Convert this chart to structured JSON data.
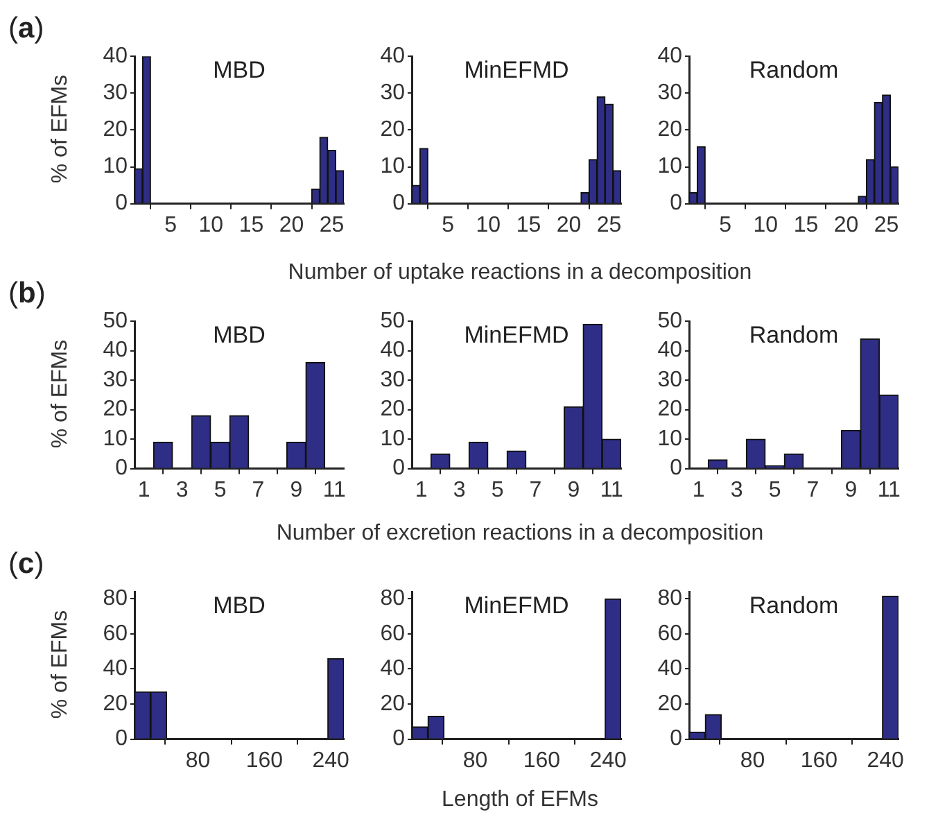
{
  "chart_data": [
    {
      "type": "histogram",
      "title": "MBD",
      "ylabel": "% of EFMs",
      "annotations": [
        "(a)"
      ],
      "color": "#2e2e87",
      "bins": [
        0.5,
        1.5,
        2.5,
        3.5,
        4.5,
        5.5,
        6.5,
        7.5,
        8.5,
        9.5,
        10.5,
        11.5,
        12.5,
        13.5,
        14.5,
        15.5,
        16.5,
        17.5,
        18.5,
        19.5,
        20.5,
        21.5,
        22.5,
        23.5,
        24.5,
        25.5,
        26.5
      ],
      "values": [
        9.5,
        40,
        0,
        0,
        0,
        0,
        0,
        0,
        0,
        0,
        0,
        0,
        0,
        0,
        0,
        0,
        0,
        0,
        0,
        0,
        0,
        0,
        4,
        18,
        14.5,
        9
      ],
      "xlim": [
        0.5,
        26.5
      ],
      "xticks": [
        5,
        10,
        15,
        20,
        25
      ],
      "ylim": [
        0,
        40
      ],
      "yticks": [
        0,
        10,
        20,
        30,
        40
      ]
    },
    {
      "type": "histogram",
      "title": "MinEFMD",
      "xlabel": "Number of uptake reactions in a decomposition",
      "color": "#2e2e87",
      "bins": [
        0.5,
        1.5,
        2.5,
        3.5,
        4.5,
        5.5,
        6.5,
        7.5,
        8.5,
        9.5,
        10.5,
        11.5,
        12.5,
        13.5,
        14.5,
        15.5,
        16.5,
        17.5,
        18.5,
        19.5,
        20.5,
        21.5,
        22.5,
        23.5,
        24.5,
        25.5,
        26.5
      ],
      "values": [
        5,
        15,
        0,
        0,
        0,
        0,
        0,
        0,
        0,
        0,
        0,
        0,
        0,
        0,
        0,
        0,
        0,
        0,
        0,
        0,
        0,
        3,
        12,
        29,
        27,
        9
      ],
      "xlim": [
        0.5,
        26.5
      ],
      "xticks": [
        5,
        10,
        15,
        20,
        25
      ],
      "ylim": [
        0,
        40
      ],
      "yticks": [
        0,
        10,
        20,
        30,
        40
      ]
    },
    {
      "type": "histogram",
      "title": "Random",
      "color": "#2e2e87",
      "bins": [
        0.5,
        1.5,
        2.5,
        3.5,
        4.5,
        5.5,
        6.5,
        7.5,
        8.5,
        9.5,
        10.5,
        11.5,
        12.5,
        13.5,
        14.5,
        15.5,
        16.5,
        17.5,
        18.5,
        19.5,
        20.5,
        21.5,
        22.5,
        23.5,
        24.5,
        25.5,
        26.5
      ],
      "values": [
        3,
        15.5,
        0,
        0,
        0,
        0,
        0,
        0,
        0,
        0,
        0,
        0,
        0,
        0,
        0,
        0,
        0,
        0,
        0,
        0,
        0,
        2,
        12,
        27.5,
        29.5,
        10
      ],
      "xlim": [
        0.5,
        26.5
      ],
      "xticks": [
        5,
        10,
        15,
        20,
        25
      ],
      "ylim": [
        0,
        40
      ],
      "yticks": [
        0,
        10,
        20,
        30,
        40
      ]
    },
    {
      "type": "histogram",
      "title": "MBD",
      "ylabel": "% of EFMs",
      "annotations": [
        "(b)"
      ],
      "color": "#2e2e87",
      "bins": [
        0.5,
        1.5,
        2.5,
        3.5,
        4.5,
        5.5,
        6.5,
        7.5,
        8.5,
        9.5,
        10.5,
        11.5
      ],
      "values": [
        0,
        9,
        0,
        18,
        9,
        18,
        0,
        0,
        9,
        36,
        0
      ],
      "xlim": [
        0.5,
        11.5
      ],
      "xticks": [
        1,
        3,
        5,
        7,
        9,
        11
      ],
      "ylim": [
        0,
        50
      ],
      "yticks": [
        0,
        10,
        20,
        30,
        40,
        50
      ]
    },
    {
      "type": "histogram",
      "title": "MinEFMD",
      "xlabel": "Number of excretion reactions in a decomposition",
      "color": "#2e2e87",
      "bins": [
        0.5,
        1.5,
        2.5,
        3.5,
        4.5,
        5.5,
        6.5,
        7.5,
        8.5,
        9.5,
        10.5,
        11.5
      ],
      "values": [
        0,
        5,
        0,
        9,
        0,
        6,
        0,
        0,
        21,
        49,
        10
      ],
      "xlim": [
        0.5,
        11.5
      ],
      "xticks": [
        1,
        3,
        5,
        7,
        9,
        11
      ],
      "ylim": [
        0,
        50
      ],
      "yticks": [
        0,
        10,
        20,
        30,
        40,
        50
      ]
    },
    {
      "type": "histogram",
      "title": "Random",
      "color": "#2e2e87",
      "bins": [
        0.5,
        1.5,
        2.5,
        3.5,
        4.5,
        5.5,
        6.5,
        7.5,
        8.5,
        9.5,
        10.5,
        11.5
      ],
      "values": [
        0,
        3,
        0,
        10,
        1,
        5,
        0,
        0,
        13,
        44,
        25
      ],
      "xlim": [
        0.5,
        11.5
      ],
      "xticks": [
        1,
        3,
        5,
        7,
        9,
        11
      ],
      "ylim": [
        0,
        50
      ],
      "yticks": [
        0,
        10,
        20,
        30,
        40,
        50
      ]
    },
    {
      "type": "histogram",
      "title": "MBD",
      "ylabel": "% of EFMs",
      "annotations": [
        "(c)"
      ],
      "color": "#2e2e87",
      "bins": [
        3.5,
        22.9,
        42.3,
        61.7,
        81.1,
        100.5,
        119.9,
        139.3,
        158.7,
        178.1,
        197.5,
        216.9,
        236.3,
        255.7
      ],
      "values": [
        27,
        27,
        0,
        0,
        0,
        0,
        0,
        0,
        0,
        0,
        0,
        0,
        46
      ],
      "xlim": [
        3.5,
        255.7
      ],
      "xticks": [
        80,
        160,
        240
      ],
      "ylim": [
        0,
        84
      ],
      "yticks": [
        0,
        20,
        40,
        60,
        80
      ]
    },
    {
      "type": "histogram",
      "title": "MinEFMD",
      "xlabel": "Length of EFMs",
      "color": "#2e2e87",
      "bins": [
        3.5,
        22.9,
        42.3,
        61.7,
        81.1,
        100.5,
        119.9,
        139.3,
        158.7,
        178.1,
        197.5,
        216.9,
        236.3,
        255.7
      ],
      "values": [
        7,
        13,
        0,
        0,
        0,
        0,
        0,
        0,
        0,
        0,
        0,
        0,
        80
      ],
      "xlim": [
        3.5,
        255.7
      ],
      "xticks": [
        80,
        160,
        240
      ],
      "ylim": [
        0,
        84
      ],
      "yticks": [
        0,
        20,
        40,
        60,
        80
      ]
    },
    {
      "type": "histogram",
      "title": "Random",
      "color": "#2e2e87",
      "bins": [
        3.5,
        22.9,
        42.3,
        61.7,
        81.1,
        100.5,
        119.9,
        139.3,
        158.7,
        178.1,
        197.5,
        216.9,
        236.3,
        255.7
      ],
      "values": [
        4,
        14,
        0,
        0,
        0,
        0,
        0,
        0,
        0,
        0,
        0,
        0,
        81.5
      ],
      "xlim": [
        3.5,
        255.7
      ],
      "xticks": [
        80,
        160,
        240
      ],
      "ylim": [
        0,
        84
      ],
      "yticks": [
        0,
        20,
        40,
        60,
        80
      ]
    }
  ]
}
